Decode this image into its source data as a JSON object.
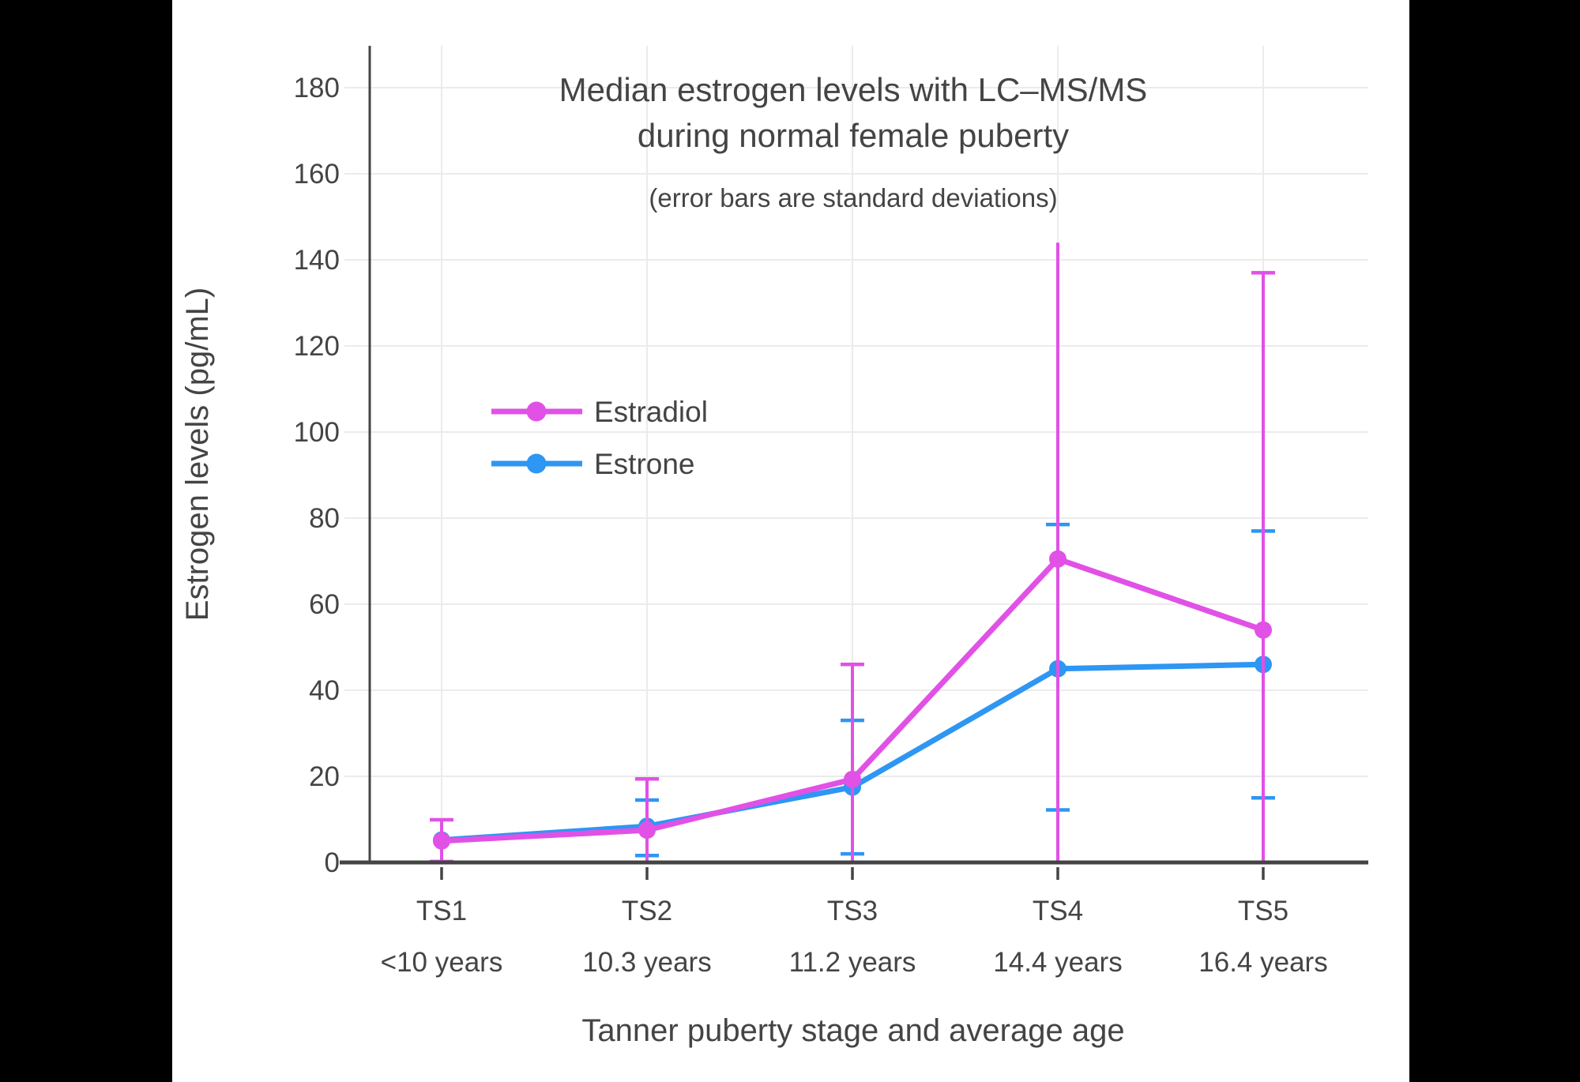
{
  "window": {
    "outer_background": "#000000",
    "panel_background": "#ffffff"
  },
  "chart_data": {
    "type": "line",
    "title_line1": "Median estrogen levels with LC–MS/MS",
    "title_line2": "during normal female puberty",
    "subtitle": "(error bars are standard deviations)",
    "xlabel": "Tanner puberty stage and average age",
    "ylabel": "Estrogen levels (pg/mL)",
    "ylim": [
      0,
      190
    ],
    "yticks": [
      0,
      20,
      40,
      60,
      80,
      100,
      120,
      140,
      160,
      180
    ],
    "grid": true,
    "legend_position": "inside-upper-left",
    "colors": {
      "estradiol": "#e151e6",
      "estrone": "#2e96f3",
      "text": "#444444",
      "gridline": "#ebebeb",
      "axis": "#444444"
    },
    "categories": [
      {
        "stage": "TS1",
        "age": "<10 years"
      },
      {
        "stage": "TS2",
        "age": "10.3 years"
      },
      {
        "stage": "TS3",
        "age": "11.2 years"
      },
      {
        "stage": "TS4",
        "age": "14.4 years"
      },
      {
        "stage": "TS5",
        "age": "16.4 years"
      }
    ],
    "series": [
      {
        "name": "Estradiol",
        "color": "#e151e6",
        "values": [
          5,
          7.5,
          19.3,
          70.5,
          54
        ],
        "error_high": [
          9.9,
          19.4,
          46,
          144,
          137
        ],
        "error_low": [
          0.2,
          0,
          0,
          0,
          0
        ],
        "cap_high": [
          true,
          true,
          true,
          false,
          true
        ],
        "cap_low": [
          true,
          false,
          false,
          false,
          false
        ],
        "error_note": "lower error bars clipped at 0 for TS2–TS5"
      },
      {
        "name": "Estrone",
        "color": "#2e96f3",
        "values": [
          5.2,
          8.4,
          17.5,
          45,
          46
        ],
        "error_high": [
          null,
          14.5,
          33,
          78.5,
          77
        ],
        "error_low": [
          null,
          1.6,
          2,
          12.2,
          15
        ],
        "cap_high": [
          false,
          true,
          true,
          true,
          true
        ],
        "cap_low": [
          false,
          true,
          true,
          true,
          true
        ],
        "error_note": "no visible error bar at TS1 (hidden behind Estradiol marker)"
      }
    ]
  }
}
